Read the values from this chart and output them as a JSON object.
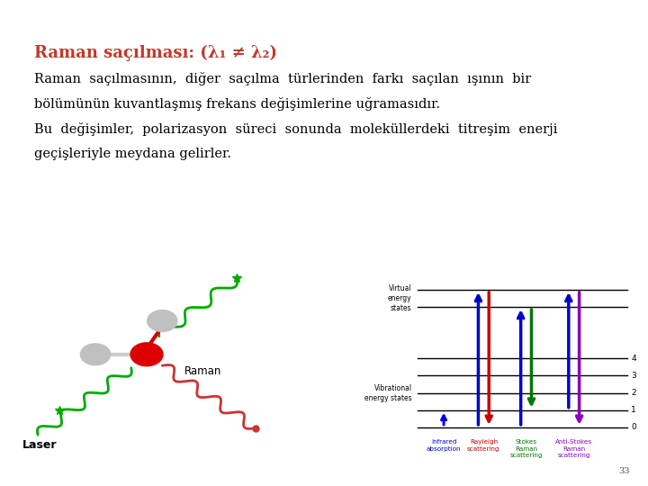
{
  "bg_color": "#ffffff",
  "title": "Raman saçılması: (λ₁ ≠ λ₂)",
  "title_color": "#c0392b",
  "title_fontsize": 13,
  "body_text_1": "Raman  saçılmasının,  diğer  saçılma  türlerinden  farkı  saçılan  ışının  bir",
  "body_text_2": "bölümünün kuvantlaşmış frekans değişimlerine uğramasıdır.",
  "body_text_3": "Bu  değişimler,  polarizasyon  süreci  sonunda  moleküllerdeki  titreşim  enerji",
  "body_text_4": "geçişleriyle meydana gelirler.",
  "body_fontsize": 10.5,
  "page_number": "33"
}
